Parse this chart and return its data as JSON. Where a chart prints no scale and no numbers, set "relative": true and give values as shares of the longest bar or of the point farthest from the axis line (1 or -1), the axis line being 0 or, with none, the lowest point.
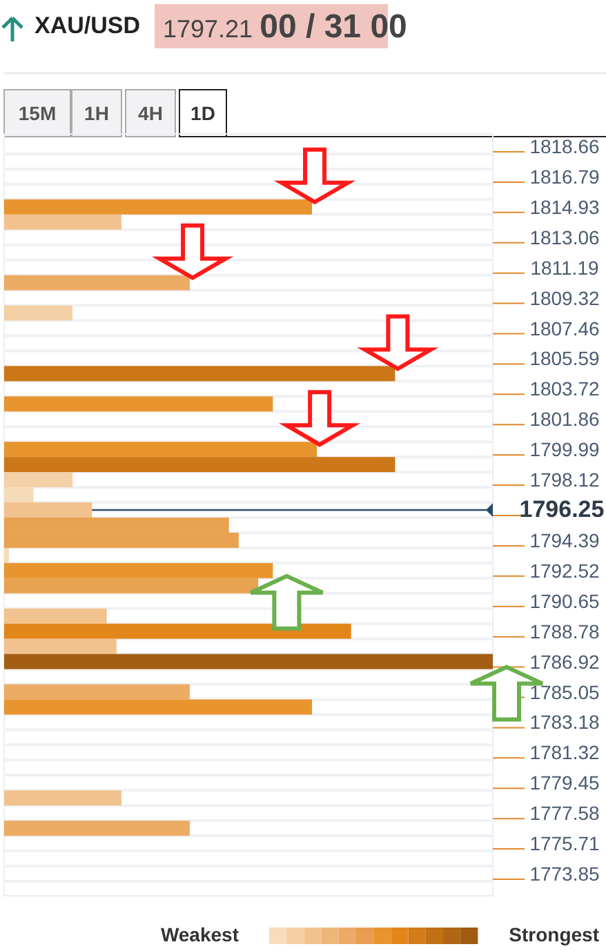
{
  "chart_data": {
    "type": "bar",
    "orientation": "horizontal",
    "relative": true,
    "title": "XAU/USD",
    "subtitle": "1797.21 00 / 31 00",
    "annotations": [
      "15M",
      "1H",
      "4H",
      "1D",
      "Weakest",
      "Strongest"
    ],
    "categories": [
      "1818.66",
      null,
      "1816.79",
      null,
      "1814.93",
      null,
      "1813.06",
      null,
      "1811.19",
      null,
      "1809.32",
      null,
      "1807.46",
      null,
      "1805.59",
      null,
      "1803.72",
      null,
      "1801.86",
      null,
      "1799.99",
      null,
      "1798.12",
      null,
      "1796.25",
      null,
      "1794.39",
      null,
      "1792.52",
      null,
      "1790.65",
      null,
      "1788.78",
      null,
      "1786.92",
      null,
      "1785.05",
      null,
      "1783.18",
      null,
      "1781.32",
      null,
      "1779.45",
      null,
      "1777.58",
      null,
      "1775.71",
      null,
      "1773.85"
    ],
    "values": [
      null,
      null,
      null,
      null,
      0.63,
      0.24,
      null,
      null,
      null,
      0.38,
      null,
      0.14,
      null,
      null,
      null,
      0.8,
      null,
      0.55,
      null,
      null,
      0.64,
      0.8,
      0.14,
      0.06,
      0.18,
      0.46,
      0.48,
      0.01,
      0.55,
      0.52,
      null,
      0.21,
      0.71,
      0.23,
      1,
      null,
      0.38,
      0.63,
      null,
      null,
      null,
      null,
      null,
      0.24,
      null,
      0.38,
      null,
      null,
      null
    ],
    "colors": [
      null,
      null,
      null,
      null,
      "#e8952f",
      "#f2c28e",
      null,
      null,
      null,
      "#edac64",
      null,
      "#f4d0a6",
      null,
      null,
      null,
      "#cc7718",
      null,
      "#e8952f",
      null,
      null,
      "#e8952f",
      "#cc7718",
      "#f4d0a6",
      "#f6dbb8",
      "#f2c28e",
      "#e9a24f",
      "#e9a24f",
      "#f6dbb8",
      "#e8952f",
      "#e9a24f",
      null,
      "#f2c28e",
      "#e2861a",
      "#f2c28e",
      "#a35e13",
      null,
      "#edac64",
      "#e8952f",
      null,
      null,
      null,
      null,
      null,
      "#f2c28e",
      null,
      "#edac64",
      null,
      null,
      null
    ],
    "ref_lines": [
      {
        "axis": "y",
        "value": "1796.25",
        "color": "#2d4a6b"
      }
    ],
    "grid": "y"
  }
}
